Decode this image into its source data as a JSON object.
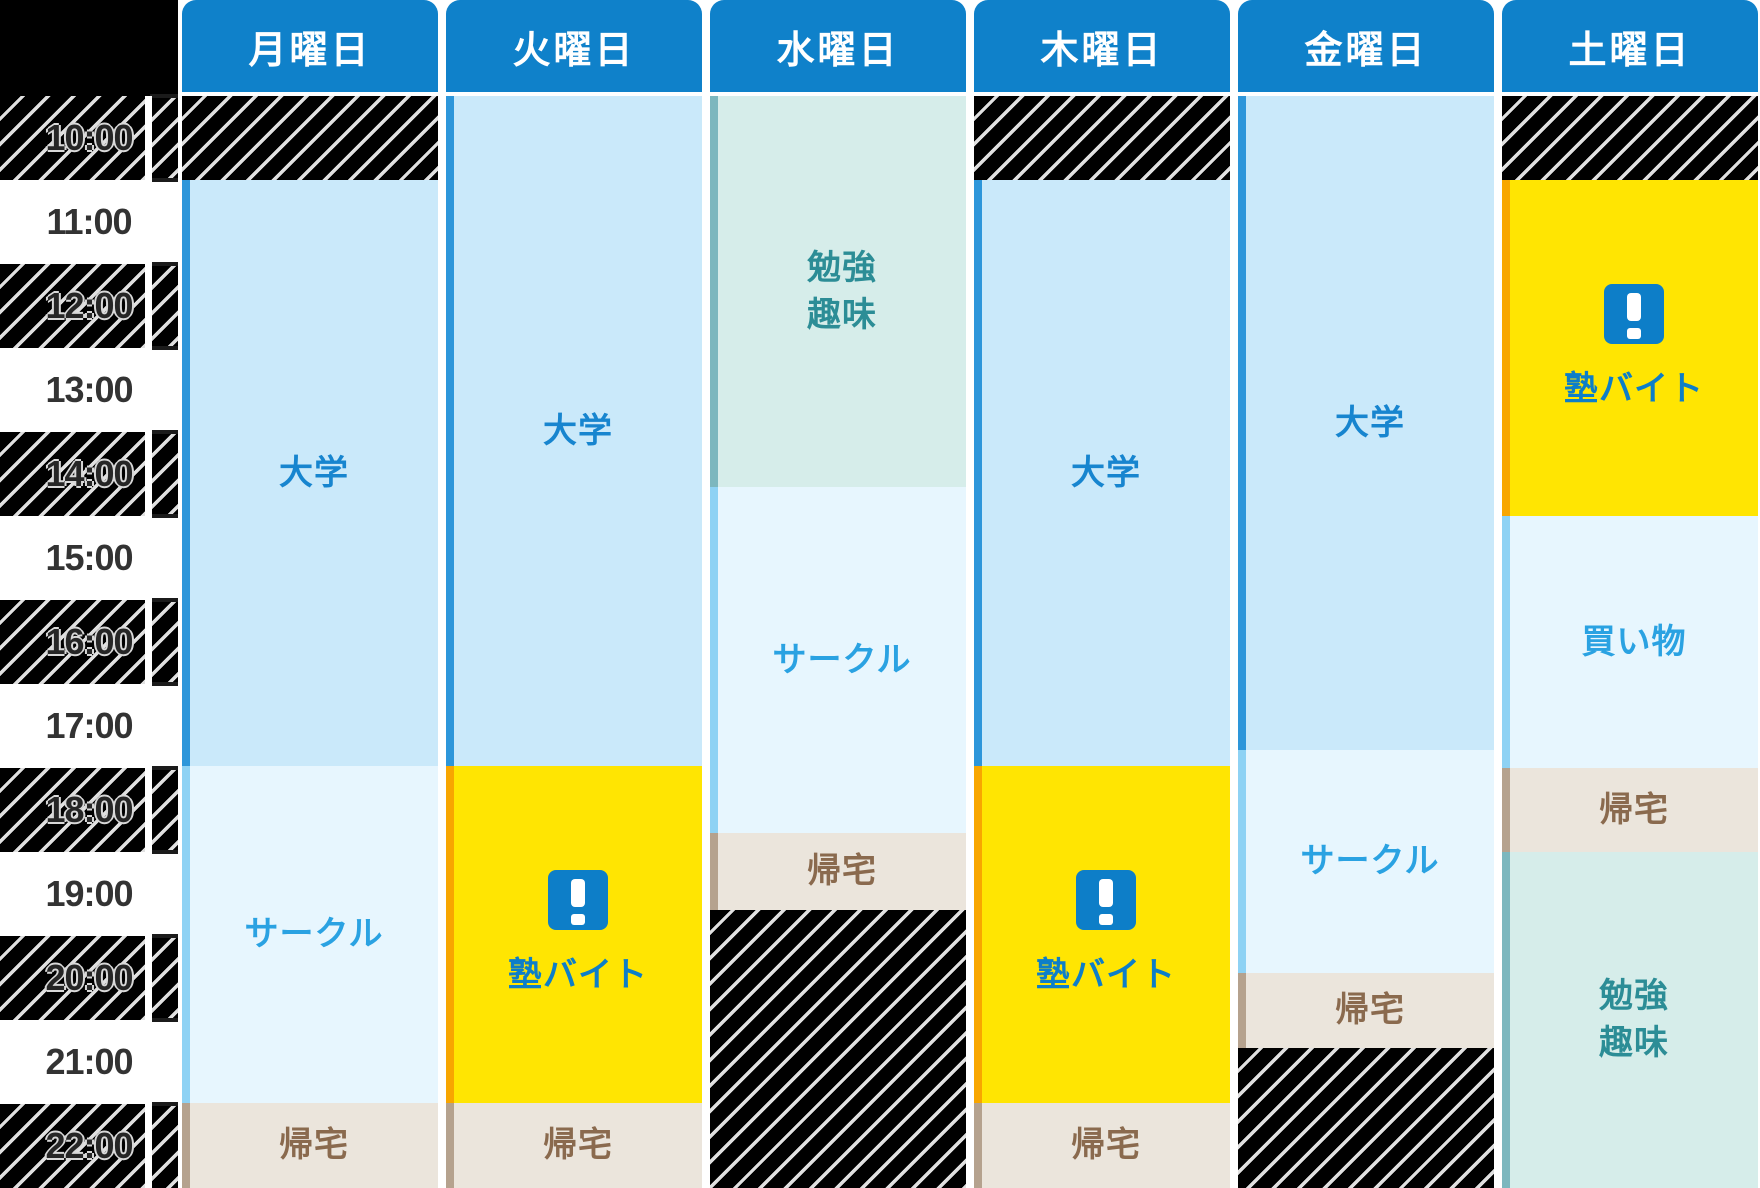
{
  "colors": {
    "page_bg": "#000000",
    "header_blue": "#0f81ca",
    "stripe_line": "#e0e0e0",
    "time_text": "#333333",
    "tick": "#1b1b1b",
    "university_fill": "#cae9fa",
    "university_accent": "#2d96da",
    "university_text": "#1785cf",
    "circle_fill": "#e7f6fe",
    "circle_accent": "#8ed2f4",
    "circle_text": "#2aa2e2",
    "study_fill": "#d6edea",
    "study_accent": "#7cb7be",
    "study_text": "#2c8d96",
    "juku_fill": "#ffe502",
    "juku_accent": "#f8a600",
    "juku_text": "#0d7ec8",
    "home_fill": "#ebe5dc",
    "home_accent": "#b5a28e",
    "home_text": "#8a6a4e",
    "shopping_fill": "#e7f6fe",
    "shopping_accent": "#8ed2f4",
    "shopping_text": "#2aa2e2",
    "alert_icon_bg": "#0d7ec8",
    "alert_icon_mark": "#ffffff"
  },
  "chart_data": {
    "type": "table",
    "columns": [
      "月曜日",
      "火曜日",
      "水曜日",
      "木曜日",
      "金曜日",
      "土曜日"
    ],
    "time_axis": {
      "start": "10:00",
      "end": "23:00",
      "rows": [
        {
          "label": "10:00",
          "striped": true
        },
        {
          "label": "11:00",
          "striped": false
        },
        {
          "label": "12:00",
          "striped": true
        },
        {
          "label": "13:00",
          "striped": false
        },
        {
          "label": "14:00",
          "striped": true
        },
        {
          "label": "15:00",
          "striped": false
        },
        {
          "label": "16:00",
          "striped": true
        },
        {
          "label": "17:00",
          "striped": false
        },
        {
          "label": "18:00",
          "striped": true
        },
        {
          "label": "19:00",
          "striped": false
        },
        {
          "label": "20:00",
          "striped": true
        },
        {
          "label": "21:00",
          "striped": false
        },
        {
          "label": "22:00",
          "striped": true
        }
      ]
    },
    "events": [
      {
        "day": "月曜日",
        "label": "大学",
        "category": "university",
        "start": "11:00",
        "end": "18:00"
      },
      {
        "day": "月曜日",
        "label": "サークル",
        "category": "circle",
        "start": "18:00",
        "end": "22:00"
      },
      {
        "day": "月曜日",
        "label": "帰宅",
        "category": "home",
        "start": "22:00",
        "end": "23:00"
      },
      {
        "day": "火曜日",
        "label": "大学",
        "category": "university",
        "start": "10:00",
        "end": "18:00"
      },
      {
        "day": "火曜日",
        "label": "塾バイト",
        "category": "juku",
        "alert": true,
        "start": "18:00",
        "end": "22:00"
      },
      {
        "day": "火曜日",
        "label": "帰宅",
        "category": "home",
        "start": "22:00",
        "end": "23:00"
      },
      {
        "day": "水曜日",
        "label": "勉強趣味",
        "lines": [
          "勉強",
          "趣味"
        ],
        "category": "study",
        "start": "10:00",
        "end": "14:40"
      },
      {
        "day": "水曜日",
        "label": "サークル",
        "category": "circle",
        "start": "14:40",
        "end": "18:45"
      },
      {
        "day": "水曜日",
        "label": "帰宅",
        "category": "home",
        "start": "18:45",
        "end": "19:40"
      },
      {
        "day": "木曜日",
        "label": "大学",
        "category": "university",
        "start": "11:00",
        "end": "18:00"
      },
      {
        "day": "木曜日",
        "label": "塾バイト",
        "category": "juku",
        "alert": true,
        "start": "18:00",
        "end": "22:00"
      },
      {
        "day": "木曜日",
        "label": "帰宅",
        "category": "home",
        "start": "22:00",
        "end": "23:00"
      },
      {
        "day": "金曜日",
        "label": "大学",
        "category": "university",
        "start": "10:00",
        "end": "17:45"
      },
      {
        "day": "金曜日",
        "label": "サークル",
        "category": "circle",
        "start": "17:45",
        "end": "20:25"
      },
      {
        "day": "金曜日",
        "label": "帰宅",
        "category": "home",
        "start": "20:25",
        "end": "21:20"
      },
      {
        "day": "土曜日",
        "label": "塾バイト",
        "category": "juku",
        "alert": true,
        "start": "11:00",
        "end": "15:00"
      },
      {
        "day": "土曜日",
        "label": "買い物",
        "category": "shopping",
        "start": "15:00",
        "end": "18:00"
      },
      {
        "day": "土曜日",
        "label": "帰宅",
        "category": "home",
        "start": "18:00",
        "end": "19:00"
      },
      {
        "day": "土曜日",
        "label": "勉強趣味",
        "lines": [
          "勉強",
          "趣味"
        ],
        "category": "study",
        "start": "19:00",
        "end": "23:00"
      }
    ]
  }
}
